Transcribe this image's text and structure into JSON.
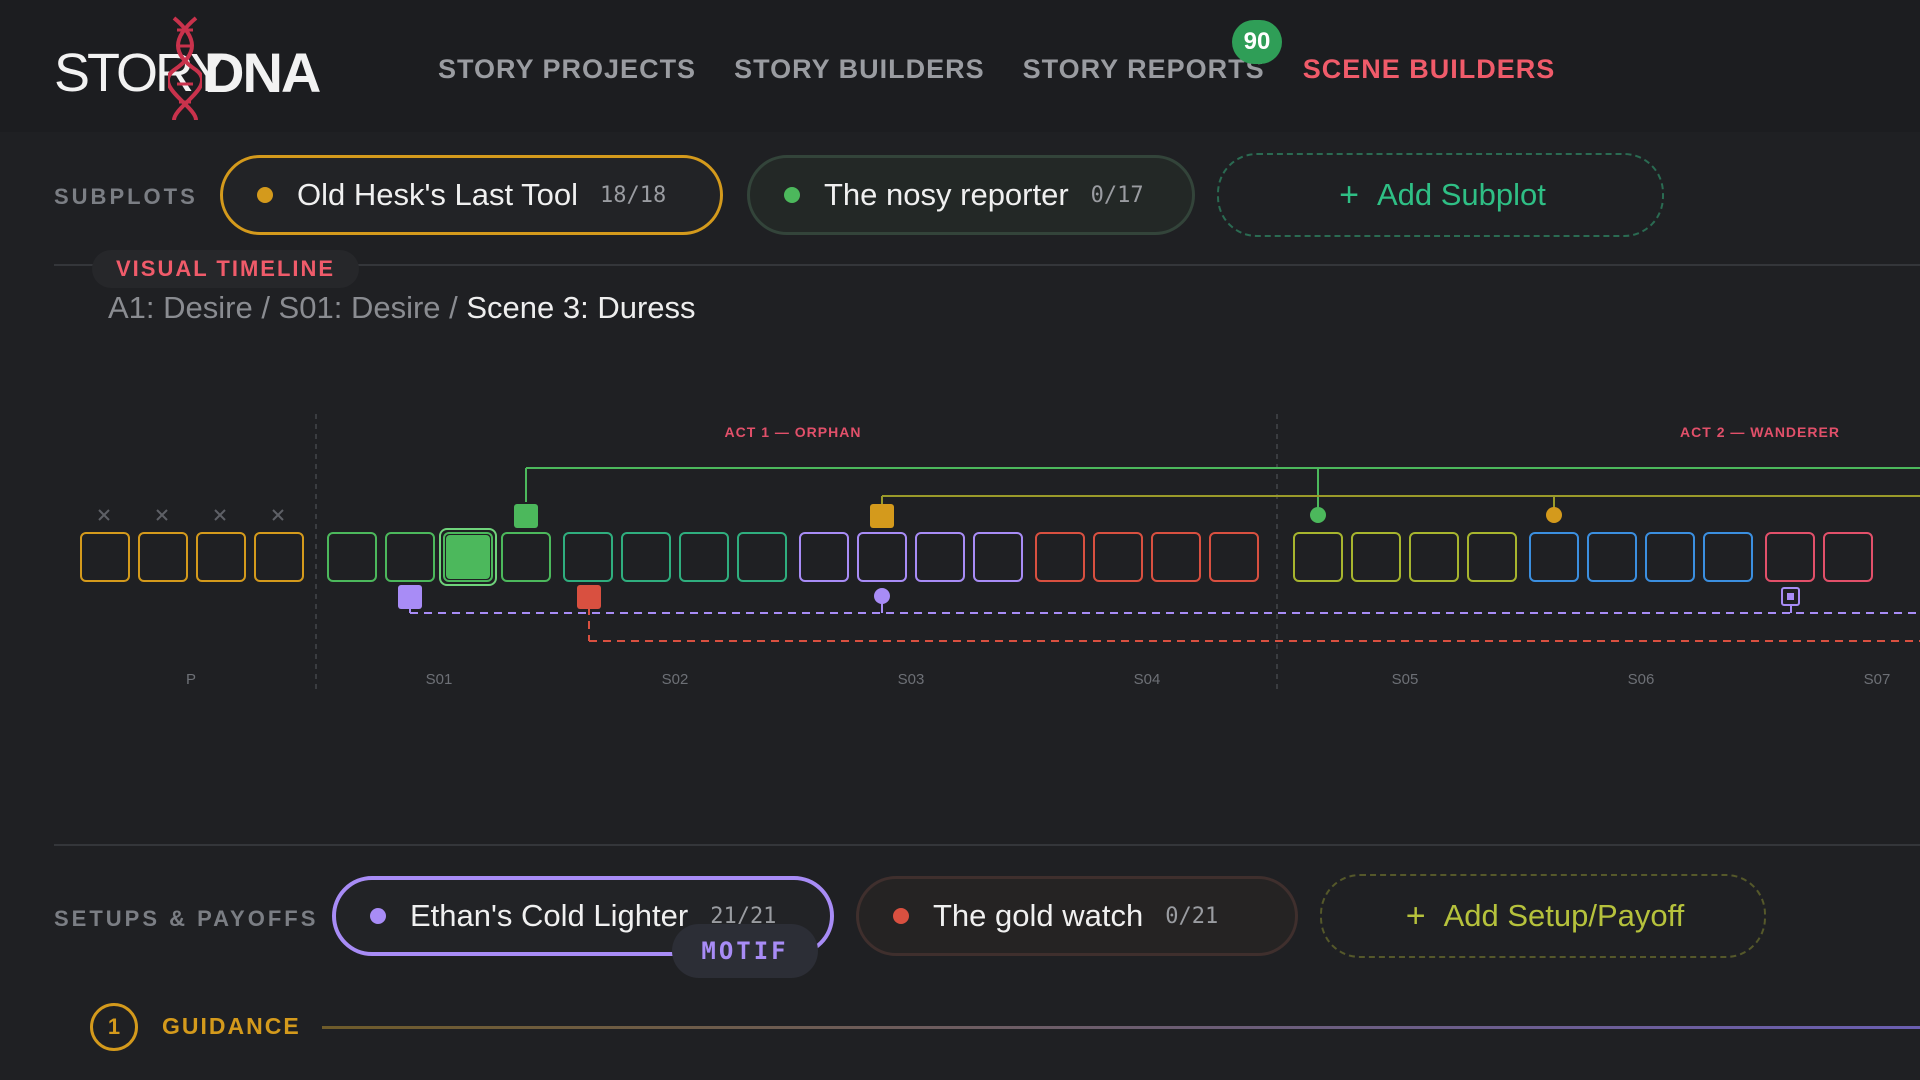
{
  "header": {
    "logo_story": "STORY",
    "logo_dna": "DNA",
    "nav": [
      {
        "label": "STORY PROJECTS"
      },
      {
        "label": "STORY BUILDERS"
      },
      {
        "label": "STORY REPORTS"
      },
      {
        "label": "SCENE BUILDERS",
        "active": true
      }
    ],
    "badge": "90"
  },
  "subplots": {
    "label": "SUBPLOTS",
    "items": [
      {
        "name": "Old Hesk's Last Tool",
        "count": "18/18",
        "color": "#d49a1c",
        "selected": true
      },
      {
        "name": "The nosy reporter",
        "count": "0/17",
        "color": "#4cb85c",
        "selected": false
      }
    ],
    "add_label": "Add Subplot"
  },
  "timeline": {
    "label": "VISUAL TIMELINE",
    "breadcrumb": {
      "path": "A1: Desire / S01: Desire / ",
      "current": "Scene 3: Duress"
    },
    "acts": [
      {
        "label": "ACT 1 — ORPHAN"
      },
      {
        "label": "ACT 2 — WANDERER"
      }
    ],
    "sequences": [
      "P",
      "S01",
      "S02",
      "S03",
      "S04",
      "S05",
      "S06",
      "S07"
    ],
    "sequence_colors": [
      "#d49a1c",
      "#4cb85c",
      "#2fae7e",
      "#a88cf6",
      "#d95040",
      "#a7b52e",
      "#3b8fe0",
      "#e2506a"
    ],
    "current_scene": "S01 scene 3"
  },
  "setups": {
    "label": "SETUPS & PAYOFFS",
    "items": [
      {
        "name": "Ethan's Cold Lighter",
        "count": "21/21",
        "color": "#a88cf6",
        "selected": true
      },
      {
        "name": "The gold watch",
        "count": "0/21",
        "color": "#d95040",
        "selected": false
      }
    ],
    "add_label": "Add Setup/Payoff",
    "motif_label": "MOTIF"
  },
  "guidance": {
    "number": "1",
    "label": "GUIDANCE"
  }
}
